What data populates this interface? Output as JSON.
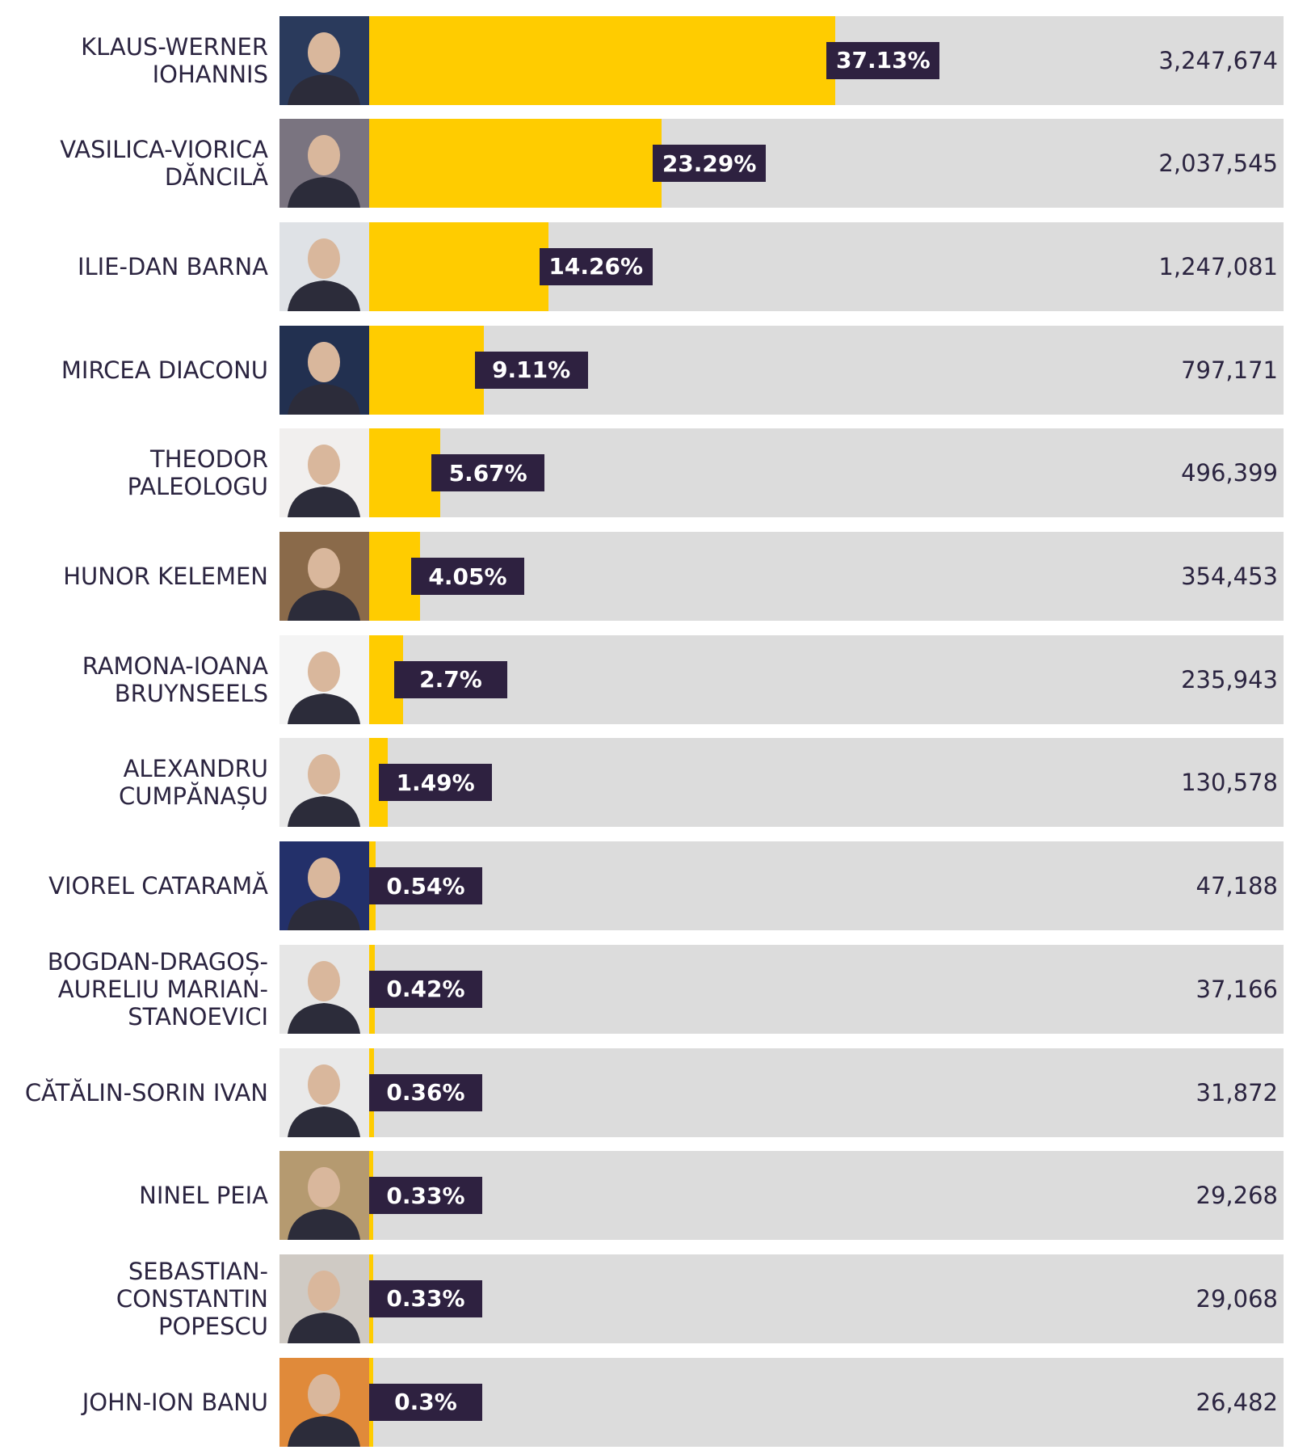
{
  "chart_data": {
    "type": "bar",
    "categories": [
      "KLAUS-WERNER IOHANNIS",
      "VASILICA-VIORICA DĂNCILĂ",
      "ILIE-DAN BARNA",
      "MIRCEA DIACONU",
      "THEODOR PALEOLOGU",
      "HUNOR KELEMEN",
      "RAMONA-IOANA BRUYNSEELS",
      "ALEXANDRU CUMPĂNAȘU",
      "VIOREL CATARAMĂ",
      "BOGDAN-DRAGOȘ-AURELIU MARIAN-STANOEVICI",
      "CĂTĂLIN-SORIN IVAN",
      "NINEL PEIA",
      "SEBASTIAN-CONSTANTIN POPESCU",
      "JOHN-ION BANU"
    ],
    "values": [
      37.13,
      23.29,
      14.26,
      9.11,
      5.67,
      4.05,
      2.7,
      1.49,
      0.54,
      0.42,
      0.36,
      0.33,
      0.33,
      0.3
    ],
    "value_labels": [
      "37.13%",
      "23.29%",
      "14.26%",
      "9.11%",
      "5.67%",
      "4.05%",
      "2.7%",
      "1.49%",
      "0.54%",
      "0.42%",
      "0.36%",
      "0.33%",
      "0.33%",
      "0.3%"
    ],
    "votes": [
      "3,247,674",
      "2,037,545",
      "1,247,081",
      "797,171",
      "496,399",
      "354,453",
      "235,943",
      "130,578",
      "47,188",
      "37,166",
      "31,872",
      "29,268",
      "29,068",
      "26,482"
    ],
    "xlim": [
      0,
      72.8
    ],
    "color": "#ffcc00",
    "track_color": "#dcdcdc",
    "label_color": "#2e2140"
  }
}
